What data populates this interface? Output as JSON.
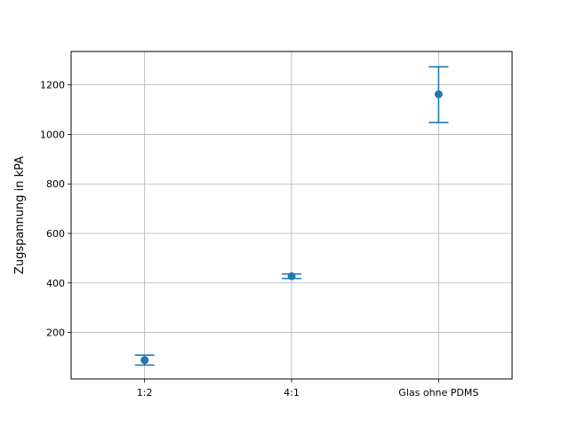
{
  "chart_data": {
    "type": "scatter",
    "title": "",
    "xlabel": "",
    "ylabel": "Zugspannung in kPA",
    "categories": [
      "1:2",
      "4:1",
      "Glas ohne PDMS"
    ],
    "series": [
      {
        "values": [
          88,
          427,
          1162
        ],
        "error_low": [
          68,
          418,
          1048
        ],
        "error_high": [
          108,
          436,
          1273
        ]
      }
    ],
    "ylim": [
      12,
      1335
    ],
    "yticks": [
      200,
      400,
      600,
      800,
      1000,
      1200
    ],
    "grid": true,
    "legend": "none",
    "colors": {
      "series": "#1f77b4",
      "grid": "#b0b0b0",
      "axis": "#000000"
    }
  }
}
